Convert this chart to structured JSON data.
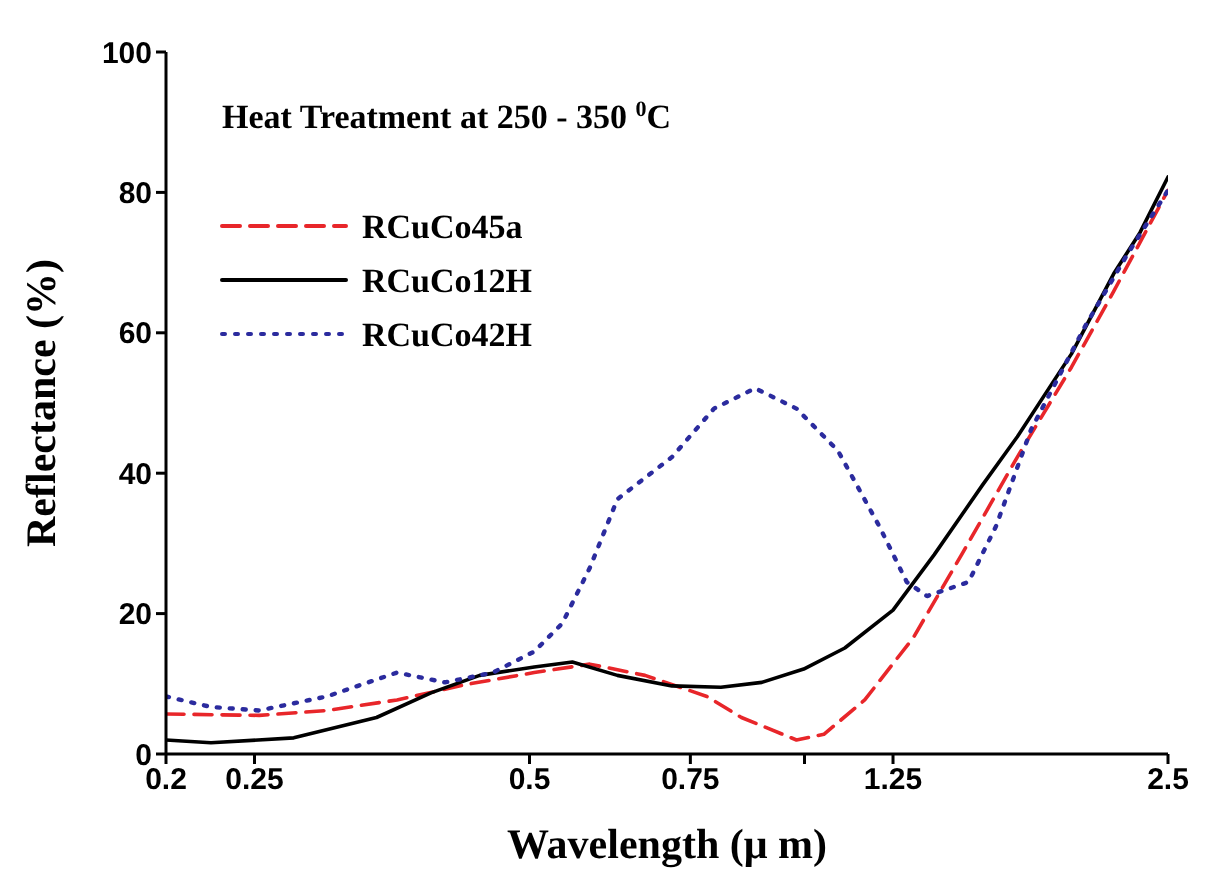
{
  "chart_data": {
    "type": "line",
    "xlabel": "Wavelength (μ m)",
    "ylabel": "Reflectance (%)",
    "annotations": [
      "Heat Treatment at 250 - 350 $^{0}$C"
    ],
    "log": "x",
    "xlim": [
      0.2,
      2.5
    ],
    "xticks": [
      0.2,
      0.25,
      0.5,
      0.75,
      {
        "value": 1.0,
        "label": null
      },
      1.25,
      2.5
    ],
    "ylim": [
      0,
      100
    ],
    "yticks": [
      0,
      20,
      40,
      60,
      80,
      100
    ],
    "grid": false,
    "legend": "top left",
    "marker": "none",
    "series": [
      {
        "name": "RCuCo45a",
        "color": "#e8262a",
        "line_style": "dashed",
        "x": [
          0.2,
          0.253,
          0.3,
          0.358,
          0.426,
          0.506,
          0.582,
          0.669,
          0.782,
          0.853,
          0.98,
          1.05,
          1.164,
          1.316,
          1.486,
          1.71,
          1.96,
          2.18,
          2.5
        ],
        "values": [
          5.7,
          5.5,
          6.2,
          7.7,
          9.9,
          11.6,
          12.8,
          11.2,
          8.2,
          5.2,
          2.0,
          2.8,
          7.7,
          16.6,
          28.4,
          42.3,
          55.1,
          65.9,
          80.3
        ]
      },
      {
        "name": "RCuCo12H",
        "color": "#000000",
        "line_style": "solid",
        "x": [
          0.2,
          0.224,
          0.276,
          0.34,
          0.39,
          0.441,
          0.506,
          0.557,
          0.624,
          0.716,
          0.81,
          0.898,
          0.998,
          1.107,
          1.25,
          1.387,
          1.566,
          1.71,
          1.96,
          2.18,
          2.33,
          2.5
        ],
        "values": [
          2.0,
          1.6,
          2.3,
          5.2,
          8.7,
          11.2,
          12.4,
          13.1,
          11.2,
          9.7,
          9.5,
          10.2,
          12.1,
          15.1,
          20.5,
          28.4,
          38.3,
          45.2,
          57,
          68.4,
          74.3,
          82.2
        ]
      },
      {
        "name": "RCuCo42H",
        "color": "#2b2b9e",
        "line_style": "dotted",
        "x": [
          0.2,
          0.224,
          0.253,
          0.3,
          0.358,
          0.404,
          0.456,
          0.506,
          0.543,
          0.582,
          0.624,
          0.716,
          0.796,
          0.883,
          0.98,
          1.088,
          1.208,
          1.294,
          1.362,
          1.512,
          1.62,
          1.77,
          2.03,
          2.25,
          2.5
        ],
        "values": [
          8.2,
          6.7,
          6.2,
          8.2,
          11.6,
          10.2,
          11.6,
          14.6,
          18.6,
          26.5,
          36.3,
          42.3,
          49.2,
          52.1,
          49.2,
          43.2,
          32.4,
          24.5,
          22.5,
          24.5,
          32.4,
          46.2,
          61,
          70.9,
          80.3
        ]
      }
    ]
  }
}
